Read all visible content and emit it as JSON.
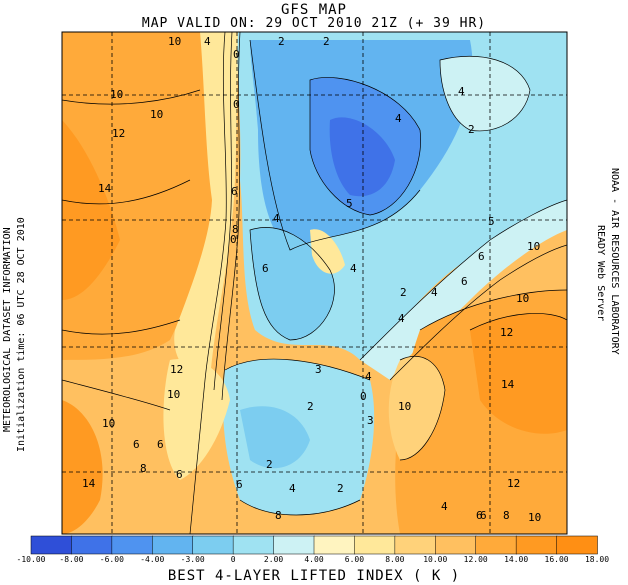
{
  "title": "GFS MAP",
  "subtitle": "MAP VALID ON: 29 OCT 2010 21Z (+ 39 HR)",
  "left_labels": [
    "METEOROLOGICAL DATASET INFORMATION",
    "Initialization time: 06 UTC 28 OCT 2010"
  ],
  "right_labels": [
    "NOAA - AIR RESOURCES LABORATORY",
    "READY Web Server"
  ],
  "colorbar": {
    "ticks": [
      "-10.00",
      "-8.00",
      "-6.00",
      "-4.00",
      "-3.00",
      "0",
      "2.00",
      "4.00",
      "6.00",
      "8.00",
      "10.00",
      "12.00",
      "14.00",
      "16.00",
      "18.00"
    ],
    "colors": [
      "#2f4fd8",
      "#3f72e8",
      "#4f93f0",
      "#62b4f0",
      "#7ccdf0",
      "#9fe2f2",
      "#cdf2f4",
      "#fff4c0",
      "#ffe89a",
      "#ffd27a",
      "#ffc060",
      "#ffaa3a",
      "#ff9a22",
      "#ff8f14"
    ],
    "label": "BEST 4-LAYER LIFTED INDEX (  K   )"
  },
  "contour_labels": [
    "10",
    "4",
    "0",
    "2",
    "2",
    "0",
    "10",
    "10",
    "4",
    "2",
    "12",
    "6",
    "4",
    "14",
    "8",
    "6",
    "5",
    "4",
    "5",
    "10",
    "0",
    "4",
    "6",
    "2",
    "4",
    "10",
    "6",
    "4",
    "12",
    "12",
    "3",
    "0",
    "4",
    "10",
    "2",
    "14",
    "10",
    "6",
    "6",
    "8",
    "2",
    "3",
    "10",
    "6",
    "8",
    "12",
    "14",
    "6",
    "2",
    "4",
    "4",
    "6",
    "10",
    "8",
    "6"
  ]
}
